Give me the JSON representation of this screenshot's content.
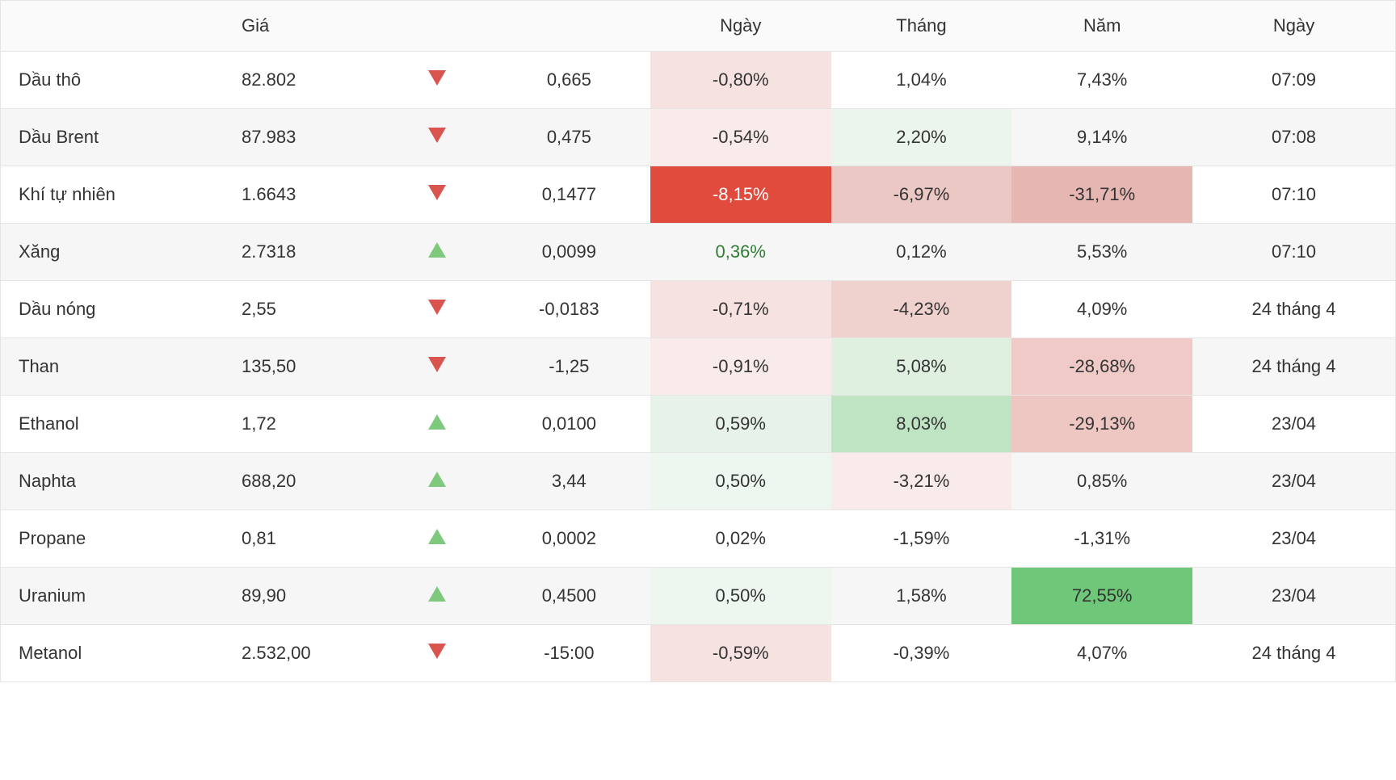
{
  "colors": {
    "up_arrow": "#7fc97f",
    "down_arrow": "#d9534f",
    "up_text": "#2e7d32",
    "down_text": "#8b1a1a",
    "border": "#e5e5e5",
    "row_alt": "#f6f6f6",
    "row_base": "#ffffff",
    "tint_red_light": "#f9ebe9",
    "tint_red_mid": "#eec6c2",
    "tint_red_strong": "#e04b3e",
    "tint_green_light": "#ecf5ec",
    "tint_green_mid": "#cce8cf",
    "tint_green_strong": "#6fc77a"
  },
  "table": {
    "columns": [
      "",
      "Giá",
      "",
      "",
      "Ngày",
      "Tháng",
      "Năm",
      "Ngày"
    ],
    "rows": [
      {
        "name": "Dầu thô",
        "price": "82.802",
        "dir": "down",
        "change": "0,665",
        "day": {
          "text": "-0,80%",
          "bg": "#f6e3e1"
        },
        "month": {
          "text": "1,04%",
          "bg": null
        },
        "year": {
          "text": "7,43%",
          "bg": null
        },
        "time": "07:09"
      },
      {
        "name": "Dầu Brent",
        "price": "87.983",
        "dir": "down",
        "change": "0,475",
        "day": {
          "text": "-0,54%",
          "bg": "#f9ebe9"
        },
        "month": {
          "text": "2,20%",
          "bg": "#ecf5ec"
        },
        "year": {
          "text": "9,14%",
          "bg": null
        },
        "time": "07:08"
      },
      {
        "name": "Khí tự nhiên",
        "price": "1.6643",
        "dir": "down",
        "change": "0,1477",
        "day": {
          "text": "-8,15%",
          "bg": "#e04b3e",
          "fg": "#ffffff"
        },
        "month": {
          "text": "-6,97%",
          "bg": "#ecc8c4"
        },
        "year": {
          "text": "-31,71%",
          "bg": "#e6b7b2"
        },
        "time": "07:10"
      },
      {
        "name": "Xăng",
        "price": "2.7318",
        "dir": "up",
        "change": "0,0099",
        "day": {
          "text": "0,36%",
          "bg": null,
          "fg": "#2e7d32"
        },
        "month": {
          "text": "0,12%",
          "bg": null
        },
        "year": {
          "text": "5,53%",
          "bg": null
        },
        "time": "07:10"
      },
      {
        "name": "Dầu nóng",
        "price": "2,55",
        "dir": "down",
        "change": "-0,0183",
        "day": {
          "text": "-0,71%",
          "bg": "#f6e3e1"
        },
        "month": {
          "text": "-4,23%",
          "bg": "#efd1ce"
        },
        "year": {
          "text": "4,09%",
          "bg": null
        },
        "time": "24 tháng 4"
      },
      {
        "name": "Than",
        "price": "135,50",
        "dir": "down",
        "change": "-1,25",
        "day": {
          "text": "-0,91%",
          "bg": "#f9ebe9"
        },
        "month": {
          "text": "5,08%",
          "bg": "#dff0e0"
        },
        "year": {
          "text": "-28,68%",
          "bg": "#efcac6"
        },
        "time": "24 tháng 4"
      },
      {
        "name": "Ethanol",
        "price": "1,72",
        "dir": "up",
        "change": "0,0100",
        "day": {
          "text": "0,59%",
          "bg": "#e7f2e8"
        },
        "month": {
          "text": "8,03%",
          "bg": "#bfe4c4"
        },
        "year": {
          "text": "-29,13%",
          "bg": "#eec6c2"
        },
        "time": "23/04"
      },
      {
        "name": "Naphta",
        "price": "688,20",
        "dir": "up",
        "change": "3,44",
        "day": {
          "text": "0,50%",
          "bg": "#eef7ef"
        },
        "month": {
          "text": "-3,21%",
          "bg": "#f9ebe9"
        },
        "year": {
          "text": "0,85%",
          "bg": null
        },
        "time": "23/04"
      },
      {
        "name": "Propane",
        "price": "0,81",
        "dir": "up",
        "change": "0,0002",
        "day": {
          "text": "0,02%",
          "bg": null
        },
        "month": {
          "text": "-1,59%",
          "bg": null
        },
        "year": {
          "text": "-1,31%",
          "bg": null
        },
        "time": "23/04"
      },
      {
        "name": "Uranium",
        "price": "89,90",
        "dir": "up",
        "change": "0,4500",
        "day": {
          "text": "0,50%",
          "bg": "#eef7ef"
        },
        "month": {
          "text": "1,58%",
          "bg": null
        },
        "year": {
          "text": "72,55%",
          "bg": "#6fc77a"
        },
        "time": "23/04"
      },
      {
        "name": "Metanol",
        "price": "2.532,00",
        "dir": "down",
        "change": "-15:00",
        "day": {
          "text": "-0,59%",
          "bg": "#f6e3e1"
        },
        "month": {
          "text": "-0,39%",
          "bg": null
        },
        "year": {
          "text": "4,07%",
          "bg": null
        },
        "time": "24 tháng 4"
      }
    ]
  }
}
